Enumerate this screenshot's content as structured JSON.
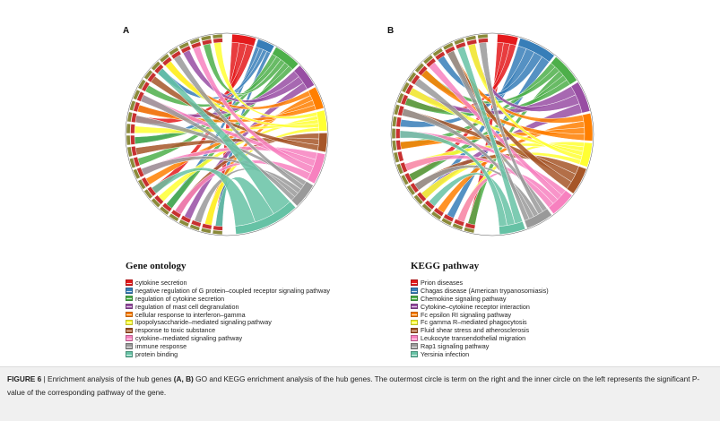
{
  "panels": [
    {
      "letter": "A",
      "legend_title": "Gene ontology",
      "terms": [
        {
          "label": "cytokine secretion",
          "color": "#e41a1c"
        },
        {
          "label": "negative regulation of G protein–coupled receptor signaling pathway",
          "color": "#377eb8"
        },
        {
          "label": "regulation of cytokine secretion",
          "color": "#4daf4a"
        },
        {
          "label": "regulation of mast cell degranulation",
          "color": "#984ea3"
        },
        {
          "label": "cellular response to interferon–gamma",
          "color": "#ff7f00"
        },
        {
          "label": "lipopolysaccharide–mediated signaling pathway",
          "color": "#ffff33"
        },
        {
          "label": "response to toxic substance",
          "color": "#a65628"
        },
        {
          "label": "cytokine–mediated signaling pathway",
          "color": "#f781bf"
        },
        {
          "label": "immune response",
          "color": "#999999"
        },
        {
          "label": "protein binding",
          "color": "#66c2a5"
        }
      ]
    },
    {
      "letter": "B",
      "legend_title": "KEGG pathway",
      "terms": [
        {
          "label": "Prion diseases",
          "color": "#e41a1c"
        },
        {
          "label": "Chagas disease (American trypanosomiasis)",
          "color": "#377eb8"
        },
        {
          "label": "Chemokine signaling pathway",
          "color": "#4daf4a"
        },
        {
          "label": "Cytokine–cytokine receptor interaction",
          "color": "#984ea3"
        },
        {
          "label": "Fc epsilon RI signaling pathway",
          "color": "#ff7f00"
        },
        {
          "label": "Fc gamma R–mediated phagocytosis",
          "color": "#ffff33"
        },
        {
          "label": "Fluid shear stress and atherosclerosis",
          "color": "#a65628"
        },
        {
          "label": "Leukocyte transendothelial migration",
          "color": "#f781bf"
        },
        {
          "label": "Rap1 signaling pathway",
          "color": "#999999"
        },
        {
          "label": "Yersinia infection",
          "color": "#66c2a5"
        }
      ]
    }
  ],
  "caption": {
    "prefix": "FIGURE 6",
    "sep": " | ",
    "text1": "Enrichment analysis of the hub genes ",
    "bold_ref": "(A, B)",
    "text2": " GO and KEGG enrichment analysis of the hub genes. The outermost circle is term on the right and the inner circle on the left represents the significant P-value of the corresponding pathway of the gene."
  }
}
